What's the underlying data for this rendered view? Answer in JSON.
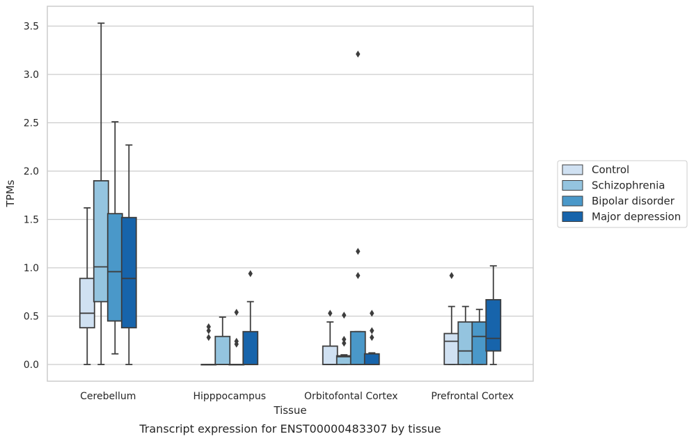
{
  "caption": "Transcript expression for ENST00000483307 by tissue",
  "chart_data": {
    "type": "box",
    "xlabel": "Tissue",
    "ylabel": "TPMs",
    "ylim": [
      -0.17,
      3.72
    ],
    "yticks": [
      "0.0",
      "0.5",
      "1.0",
      "1.5",
      "2.0",
      "2.5",
      "3.0",
      "3.5"
    ],
    "ytick_values": [
      0,
      0.5,
      1.0,
      1.5,
      2.0,
      2.5,
      3.0,
      3.5
    ],
    "grid": true,
    "legend_position": "right",
    "categories": [
      "Cerebellum",
      "Hipppocampus",
      "Orbitofontal Cortex",
      "Prefrontal Cortex"
    ],
    "series": [
      {
        "name": "Control",
        "color": "#d0e1f2",
        "boxes": [
          {
            "whislo": 0.0,
            "q1": 0.38,
            "med": 0.53,
            "q3": 0.89,
            "whishi": 1.62,
            "fliers": []
          },
          {
            "whislo": 0.0,
            "q1": 0.0,
            "med": 0.0,
            "q3": 0.0,
            "whishi": 0.0,
            "fliers": [
              0.28,
              0.35,
              0.39
            ]
          },
          {
            "whislo": 0.0,
            "q1": 0.0,
            "med": 0.0,
            "q3": 0.19,
            "whishi": 0.44,
            "fliers": [
              0.53
            ]
          },
          {
            "whislo": 0.0,
            "q1": 0.0,
            "med": 0.24,
            "q3": 0.32,
            "whishi": 0.6,
            "fliers": [
              0.92
            ]
          }
        ]
      },
      {
        "name": "Schizophrenia",
        "color": "#94c4df",
        "boxes": [
          {
            "whislo": 0.0,
            "q1": 0.65,
            "med": 1.01,
            "q3": 1.9,
            "whishi": 3.53,
            "fliers": []
          },
          {
            "whislo": 0.0,
            "q1": 0.0,
            "med": 0.0,
            "q3": 0.29,
            "whishi": 0.49,
            "fliers": []
          },
          {
            "whislo": 0.0,
            "q1": 0.0,
            "med": 0.08,
            "q3": 0.09,
            "whishi": 0.1,
            "fliers": [
              0.22,
              0.26,
              0.51
            ]
          },
          {
            "whislo": 0.0,
            "q1": 0.0,
            "med": 0.14,
            "q3": 0.44,
            "whishi": 0.6,
            "fliers": []
          }
        ]
      },
      {
        "name": "Bipolar disorder",
        "color": "#4a98c9",
        "boxes": [
          {
            "whislo": 0.11,
            "q1": 0.45,
            "med": 0.96,
            "q3": 1.56,
            "whishi": 2.51,
            "fliers": []
          },
          {
            "whislo": 0.0,
            "q1": 0.0,
            "med": 0.0,
            "q3": 0.0,
            "whishi": 0.0,
            "fliers": [
              0.21,
              0.24,
              0.54
            ]
          },
          {
            "whislo": 0.0,
            "q1": 0.0,
            "med": 0.0,
            "q3": 0.34,
            "whishi": 0.34,
            "fliers": [
              0.92,
              1.17,
              3.21
            ]
          },
          {
            "whislo": 0.0,
            "q1": 0.0,
            "med": 0.29,
            "q3": 0.44,
            "whishi": 0.57,
            "fliers": []
          }
        ]
      },
      {
        "name": "Major depression",
        "color": "#1764ab",
        "boxes": [
          {
            "whislo": 0.0,
            "q1": 0.38,
            "med": 0.89,
            "q3": 1.52,
            "whishi": 2.27,
            "fliers": []
          },
          {
            "whislo": 0.0,
            "q1": 0.0,
            "med": 0.0,
            "q3": 0.34,
            "whishi": 0.65,
            "fliers": [
              0.94
            ]
          },
          {
            "whislo": 0.0,
            "q1": 0.0,
            "med": 0.0,
            "q3": 0.11,
            "whishi": 0.12,
            "fliers": [
              0.28,
              0.35,
              0.53
            ]
          },
          {
            "whislo": 0.0,
            "q1": 0.14,
            "med": 0.27,
            "q3": 0.67,
            "whishi": 1.02,
            "fliers": []
          }
        ]
      }
    ]
  }
}
